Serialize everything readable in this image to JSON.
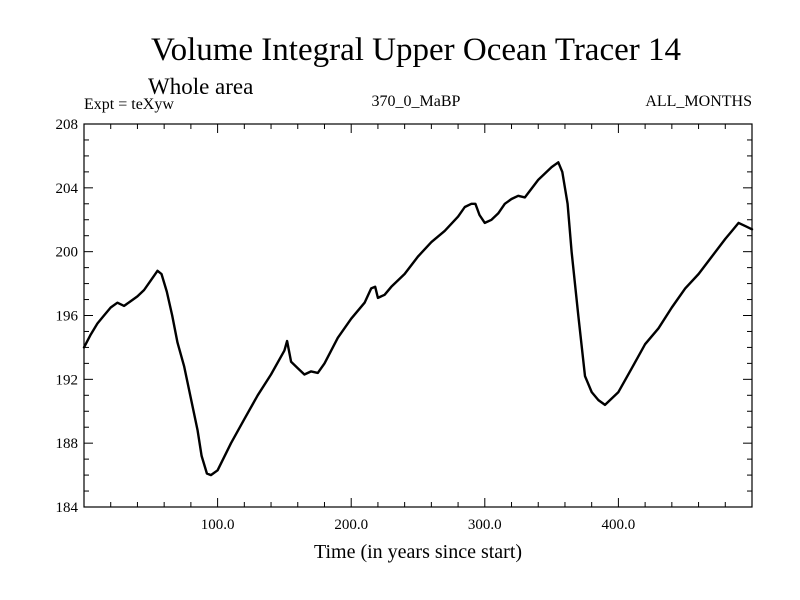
{
  "chart_data": {
    "type": "line",
    "title": "Volume Integral Upper Ocean Tracer 14",
    "subtitle": "Whole area",
    "left_label": "Expt = teXyw",
    "center_label": "370_0_MaBP",
    "right_label": "ALL_MONTHS",
    "xlabel": "Time (in years since start)",
    "ylabel": "",
    "xlim": [
      0,
      500
    ],
    "ylim": [
      184,
      208
    ],
    "x_ticks": [
      100,
      200,
      300,
      400
    ],
    "x_tick_labels": [
      "100.0",
      "200.0",
      "300.0",
      "400.0"
    ],
    "y_ticks": [
      184,
      188,
      192,
      196,
      200,
      204,
      208
    ],
    "y_tick_labels": [
      "184",
      "188",
      "192",
      "196",
      "200",
      "204",
      "208"
    ],
    "grid": false,
    "series": [
      {
        "color": "#000000",
        "x": [
          0,
          5,
          10,
          15,
          20,
          25,
          30,
          35,
          40,
          45,
          50,
          55,
          58,
          62,
          66,
          70,
          75,
          80,
          85,
          88,
          92,
          95,
          100,
          110,
          120,
          130,
          140,
          150,
          152,
          155,
          160,
          165,
          170,
          175,
          180,
          190,
          200,
          210,
          215,
          218,
          220,
          225,
          230,
          240,
          250,
          260,
          270,
          280,
          285,
          290,
          293,
          296,
          300,
          305,
          310,
          315,
          320,
          325,
          330,
          340,
          350,
          355,
          358,
          362,
          365,
          370,
          375,
          380,
          385,
          390,
          395,
          400,
          410,
          420,
          430,
          440,
          450,
          460,
          470,
          480,
          485,
          490,
          495,
          500
        ],
        "values": [
          194.0,
          194.8,
          195.5,
          196.0,
          196.5,
          196.8,
          196.6,
          196.9,
          197.2,
          197.6,
          198.2,
          198.8,
          198.6,
          197.5,
          196.0,
          194.3,
          192.8,
          190.8,
          188.8,
          187.2,
          186.1,
          186.0,
          186.3,
          188.0,
          189.5,
          191.0,
          192.3,
          193.8,
          194.4,
          193.1,
          192.7,
          192.3,
          192.5,
          192.4,
          193.0,
          194.6,
          195.8,
          196.8,
          197.7,
          197.8,
          197.1,
          197.3,
          197.8,
          198.6,
          199.7,
          200.6,
          201.3,
          202.2,
          202.8,
          203.0,
          203.0,
          202.3,
          201.8,
          202.0,
          202.4,
          203.0,
          203.3,
          203.5,
          203.4,
          204.5,
          205.3,
          205.6,
          205.0,
          203.0,
          200.0,
          196.0,
          192.2,
          191.2,
          190.7,
          190.4,
          190.8,
          191.2,
          192.7,
          194.2,
          195.2,
          196.5,
          197.7,
          198.6,
          199.7,
          200.8,
          201.3,
          201.8,
          201.6,
          201.4
        ]
      }
    ]
  }
}
